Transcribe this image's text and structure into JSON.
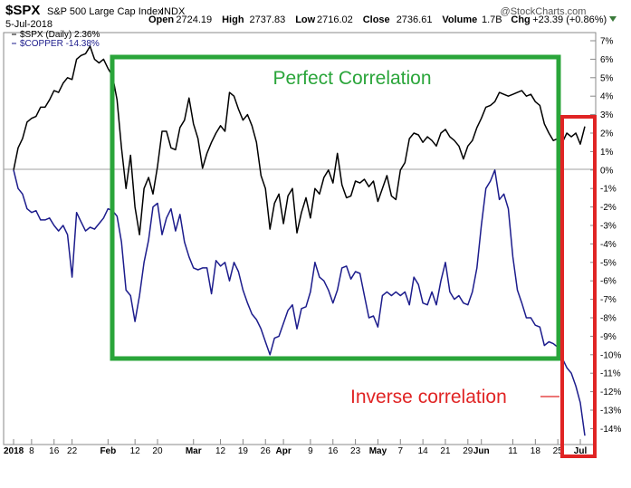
{
  "header": {
    "ticker": "$SPX",
    "name": "S&P 500 Large Cap Index",
    "exchange": "INDX",
    "brand": "@StockCharts.com",
    "date": "5-Jul-2018",
    "quote": [
      {
        "label": "Open",
        "value": "2724.19"
      },
      {
        "label": "High",
        "value": "2737.83"
      },
      {
        "label": "Low",
        "value": "2716.02"
      },
      {
        "label": "Close",
        "value": "2736.61"
      },
      {
        "label": "Volume",
        "value": "1.7B"
      },
      {
        "label": "Chg",
        "value": "+23.39 (+0.86%)"
      }
    ]
  },
  "annotations": {
    "green_label": "Perfect Correlation",
    "red_label": "Inverse correlation",
    "green_color": "#2aa53a",
    "red_color": "#e02424"
  },
  "chart_data": {
    "type": "line",
    "ylim": [
      -14.8,
      7.7
    ],
    "ytick_values": [
      7,
      6,
      5,
      4,
      3,
      2,
      1,
      0,
      -1,
      -2,
      -3,
      -4,
      -5,
      -6,
      -7,
      -8,
      -9,
      -10,
      -11,
      -12,
      -13,
      -14
    ],
    "ytick_labels": [
      "7%",
      "6%",
      "5%",
      "4%",
      "3%",
      "2%",
      "1%",
      "0%",
      "-1%",
      "-2%",
      "-3%",
      "-4%",
      "-5%",
      "-6%",
      "-7%",
      "-8%",
      "-9%",
      "-10%",
      "-11%",
      "-12%",
      "-13%",
      "-14%"
    ],
    "zero_line": 0,
    "grid": false,
    "legend_position": "top-left",
    "xticks": [
      {
        "label": "2018",
        "i": 0,
        "bold": true
      },
      {
        "label": "8",
        "i": 4,
        "bold": false
      },
      {
        "label": "16",
        "i": 9,
        "bold": false
      },
      {
        "label": "22",
        "i": 13,
        "bold": false
      },
      {
        "label": "Feb",
        "i": 21,
        "bold": true
      },
      {
        "label": "12",
        "i": 27,
        "bold": false
      },
      {
        "label": "20",
        "i": 32,
        "bold": false
      },
      {
        "label": "Mar",
        "i": 40,
        "bold": true
      },
      {
        "label": "12",
        "i": 46,
        "bold": false
      },
      {
        "label": "19",
        "i": 51,
        "bold": false
      },
      {
        "label": "26",
        "i": 56,
        "bold": false
      },
      {
        "label": "Apr",
        "i": 60,
        "bold": true
      },
      {
        "label": "9",
        "i": 66,
        "bold": false
      },
      {
        "label": "16",
        "i": 71,
        "bold": false
      },
      {
        "label": "23",
        "i": 76,
        "bold": false
      },
      {
        "label": "May",
        "i": 81,
        "bold": true
      },
      {
        "label": "7",
        "i": 86,
        "bold": false
      },
      {
        "label": "14",
        "i": 91,
        "bold": false
      },
      {
        "label": "21",
        "i": 96,
        "bold": false
      },
      {
        "label": "29",
        "i": 101,
        "bold": false
      },
      {
        "label": "Jun",
        "i": 104,
        "bold": true
      },
      {
        "label": "11",
        "i": 111,
        "bold": false
      },
      {
        "label": "18",
        "i": 116,
        "bold": false
      },
      {
        "label": "25",
        "i": 121,
        "bold": false
      },
      {
        "label": "Jul",
        "i": 126,
        "bold": true
      }
    ],
    "n_points": 128,
    "series": [
      {
        "name": "$SPX (Daily) 2.36%",
        "color": "#000000",
        "points": [
          [
            0,
            0.0
          ],
          [
            1,
            1.2
          ],
          [
            2,
            1.7
          ],
          [
            3,
            2.6
          ],
          [
            4,
            2.8
          ],
          [
            5,
            2.9
          ],
          [
            6,
            3.4
          ],
          [
            7,
            3.4
          ],
          [
            8,
            3.8
          ],
          [
            9,
            4.3
          ],
          [
            10,
            4.2
          ],
          [
            11,
            4.7
          ],
          [
            12,
            5.0
          ],
          [
            13,
            4.9
          ],
          [
            14,
            6.0
          ],
          [
            15,
            6.2
          ],
          [
            16,
            6.3
          ],
          [
            17,
            6.7
          ],
          [
            18,
            6.0
          ],
          [
            19,
            5.8
          ],
          [
            20,
            6.0
          ],
          [
            21,
            5.5
          ],
          [
            22,
            5.1
          ],
          [
            23,
            3.8
          ],
          [
            24,
            1.2
          ],
          [
            25,
            -1.0
          ],
          [
            26,
            0.8
          ],
          [
            27,
            -2.0
          ],
          [
            28,
            -3.5
          ],
          [
            29,
            -1.0
          ],
          [
            30,
            -0.4
          ],
          [
            31,
            -1.3
          ],
          [
            32,
            0.2
          ],
          [
            33,
            2.1
          ],
          [
            34,
            2.1
          ],
          [
            35,
            1.2
          ],
          [
            36,
            1.1
          ],
          [
            37,
            2.3
          ],
          [
            38,
            2.7
          ],
          [
            39,
            3.9
          ],
          [
            40,
            2.5
          ],
          [
            41,
            1.7
          ],
          [
            42,
            0.1
          ],
          [
            43,
            0.9
          ],
          [
            44,
            1.5
          ],
          [
            45,
            2.0
          ],
          [
            46,
            2.4
          ],
          [
            47,
            2.1
          ],
          [
            48,
            4.2
          ],
          [
            49,
            4.0
          ],
          [
            50,
            3.3
          ],
          [
            51,
            2.7
          ],
          [
            52,
            3.0
          ],
          [
            53,
            2.4
          ],
          [
            54,
            1.5
          ],
          [
            55,
            -0.3
          ],
          [
            56,
            -1.0
          ],
          [
            57,
            -3.2
          ],
          [
            58,
            -1.8
          ],
          [
            59,
            -1.3
          ],
          [
            60,
            -2.9
          ],
          [
            61,
            -1.4
          ],
          [
            62,
            -1.0
          ],
          [
            63,
            -3.4
          ],
          [
            64,
            -2.3
          ],
          [
            65,
            -1.5
          ],
          [
            66,
            -2.6
          ],
          [
            67,
            -1.0
          ],
          [
            68,
            -1.3
          ],
          [
            69,
            -0.4
          ],
          [
            70,
            0.0
          ],
          [
            71,
            -0.7
          ],
          [
            72,
            0.9
          ],
          [
            73,
            -0.8
          ],
          [
            74,
            -1.5
          ],
          [
            75,
            -1.4
          ],
          [
            76,
            -0.6
          ],
          [
            77,
            -0.7
          ],
          [
            78,
            -0.5
          ],
          [
            79,
            -0.9
          ],
          [
            80,
            -0.6
          ],
          [
            81,
            -1.7
          ],
          [
            82,
            -1.0
          ],
          [
            83,
            -0.3
          ],
          [
            84,
            -1.4
          ],
          [
            85,
            -1.6
          ],
          [
            86,
            0.0
          ],
          [
            87,
            0.4
          ],
          [
            88,
            1.7
          ],
          [
            89,
            2.0
          ],
          [
            90,
            1.9
          ],
          [
            91,
            1.5
          ],
          [
            92,
            1.8
          ],
          [
            93,
            1.6
          ],
          [
            94,
            1.3
          ],
          [
            95,
            2.0
          ],
          [
            96,
            2.2
          ],
          [
            97,
            1.8
          ],
          [
            98,
            1.6
          ],
          [
            99,
            1.3
          ],
          [
            100,
            0.6
          ],
          [
            101,
            1.3
          ],
          [
            102,
            1.6
          ],
          [
            103,
            2.3
          ],
          [
            104,
            2.8
          ],
          [
            105,
            3.4
          ],
          [
            106,
            3.5
          ],
          [
            107,
            3.7
          ],
          [
            108,
            4.2
          ],
          [
            109,
            4.1
          ],
          [
            110,
            4.0
          ],
          [
            111,
            4.1
          ],
          [
            112,
            4.2
          ],
          [
            113,
            4.3
          ],
          [
            114,
            4.0
          ],
          [
            115,
            4.1
          ],
          [
            116,
            3.7
          ],
          [
            117,
            3.5
          ],
          [
            118,
            2.5
          ],
          [
            119,
            2.0
          ],
          [
            120,
            1.6
          ],
          [
            121,
            1.7
          ],
          [
            122,
            1.5
          ],
          [
            123,
            2.0
          ],
          [
            124,
            1.8
          ],
          [
            125,
            2.0
          ],
          [
            126,
            1.4
          ],
          [
            127,
            2.36
          ]
        ]
      },
      {
        "name": "$COPPER -14.38%",
        "color": "#1c1c8c",
        "points": [
          [
            0,
            0.0
          ],
          [
            1,
            -1.0
          ],
          [
            2,
            -1.3
          ],
          [
            3,
            -2.1
          ],
          [
            4,
            -2.3
          ],
          [
            5,
            -2.2
          ],
          [
            6,
            -2.7
          ],
          [
            7,
            -2.7
          ],
          [
            8,
            -2.6
          ],
          [
            9,
            -3.0
          ],
          [
            10,
            -3.3
          ],
          [
            11,
            -3.0
          ],
          [
            12,
            -3.5
          ],
          [
            13,
            -5.8
          ],
          [
            14,
            -2.3
          ],
          [
            15,
            -2.8
          ],
          [
            16,
            -3.3
          ],
          [
            17,
            -3.1
          ],
          [
            18,
            -3.2
          ],
          [
            19,
            -2.9
          ],
          [
            20,
            -2.6
          ],
          [
            21,
            -2.1
          ],
          [
            22,
            -2.2
          ],
          [
            23,
            -2.5
          ],
          [
            24,
            -3.9
          ],
          [
            25,
            -6.5
          ],
          [
            26,
            -6.8
          ],
          [
            27,
            -8.2
          ],
          [
            28,
            -6.8
          ],
          [
            29,
            -5.0
          ],
          [
            30,
            -3.8
          ],
          [
            31,
            -2.0
          ],
          [
            32,
            -1.8
          ],
          [
            33,
            -3.5
          ],
          [
            34,
            -2.6
          ],
          [
            35,
            -2.1
          ],
          [
            36,
            -3.3
          ],
          [
            37,
            -2.4
          ],
          [
            38,
            -3.9
          ],
          [
            39,
            -4.7
          ],
          [
            40,
            -5.3
          ],
          [
            41,
            -5.4
          ],
          [
            42,
            -5.3
          ],
          [
            43,
            -5.3
          ],
          [
            44,
            -6.7
          ],
          [
            45,
            -4.9
          ],
          [
            46,
            -5.2
          ],
          [
            47,
            -5.0
          ],
          [
            48,
            -6.0
          ],
          [
            49,
            -5.0
          ],
          [
            50,
            -5.5
          ],
          [
            51,
            -6.5
          ],
          [
            52,
            -7.2
          ],
          [
            53,
            -7.8
          ],
          [
            54,
            -8.1
          ],
          [
            55,
            -8.6
          ],
          [
            56,
            -9.3
          ],
          [
            57,
            -10.0
          ],
          [
            58,
            -9.1
          ],
          [
            59,
            -9.0
          ],
          [
            60,
            -8.3
          ],
          [
            61,
            -7.6
          ],
          [
            62,
            -7.3
          ],
          [
            63,
            -8.6
          ],
          [
            64,
            -7.5
          ],
          [
            65,
            -7.4
          ],
          [
            66,
            -6.6
          ],
          [
            67,
            -5.0
          ],
          [
            68,
            -5.8
          ],
          [
            69,
            -6.0
          ],
          [
            70,
            -6.5
          ],
          [
            71,
            -7.2
          ],
          [
            72,
            -6.5
          ],
          [
            73,
            -5.3
          ],
          [
            74,
            -5.2
          ],
          [
            75,
            -5.9
          ],
          [
            76,
            -5.5
          ],
          [
            77,
            -5.6
          ],
          [
            78,
            -6.8
          ],
          [
            79,
            -8.0
          ],
          [
            80,
            -7.9
          ],
          [
            81,
            -8.5
          ],
          [
            82,
            -6.8
          ],
          [
            83,
            -6.6
          ],
          [
            84,
            -6.8
          ],
          [
            85,
            -6.6
          ],
          [
            86,
            -6.8
          ],
          [
            87,
            -6.6
          ],
          [
            88,
            -7.3
          ],
          [
            89,
            -5.8
          ],
          [
            90,
            -6.2
          ],
          [
            91,
            -7.2
          ],
          [
            92,
            -7.3
          ],
          [
            93,
            -6.6
          ],
          [
            94,
            -7.3
          ],
          [
            95,
            -6.0
          ],
          [
            96,
            -5.0
          ],
          [
            97,
            -6.6
          ],
          [
            98,
            -7.0
          ],
          [
            99,
            -6.8
          ],
          [
            100,
            -7.2
          ],
          [
            101,
            -7.3
          ],
          [
            102,
            -6.6
          ],
          [
            103,
            -5.3
          ],
          [
            104,
            -3.0
          ],
          [
            105,
            -1.0
          ],
          [
            106,
            -0.6
          ],
          [
            107,
            0.0
          ],
          [
            108,
            -1.6
          ],
          [
            109,
            -1.3
          ],
          [
            110,
            -2.1
          ],
          [
            111,
            -4.7
          ],
          [
            112,
            -6.5
          ],
          [
            113,
            -7.2
          ],
          [
            114,
            -8.0
          ],
          [
            115,
            -8.0
          ],
          [
            116,
            -8.4
          ],
          [
            117,
            -8.5
          ],
          [
            118,
            -9.5
          ],
          [
            119,
            -9.3
          ],
          [
            120,
            -9.4
          ],
          [
            121,
            -9.6
          ],
          [
            122,
            -10.2
          ],
          [
            123,
            -10.7
          ],
          [
            124,
            -11.0
          ],
          [
            125,
            -11.7
          ],
          [
            126,
            -12.6
          ],
          [
            127,
            -14.38
          ]
        ]
      }
    ]
  }
}
